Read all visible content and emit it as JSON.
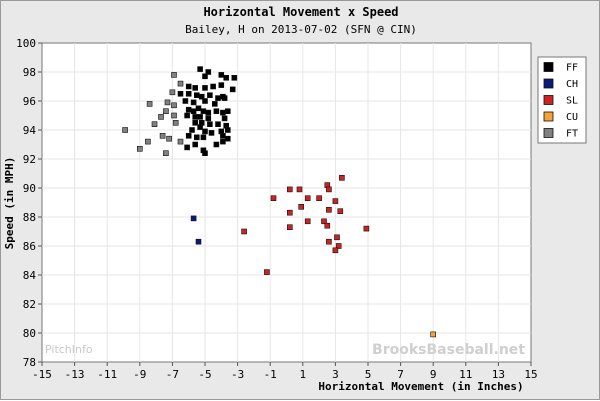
{
  "chart_data": {
    "type": "scatter",
    "title": "Horizontal Movement x Speed",
    "subtitle": "Bailey, H on 2013-07-02 (SFN @ CIN)",
    "xlabel": "Horizontal Movement (in Inches)",
    "ylabel": "Speed (in MPH)",
    "xlim": [
      -15,
      15
    ],
    "ylim": [
      78,
      100
    ],
    "xticks": [
      -15,
      -13,
      -11,
      -9,
      -7,
      -5,
      -3,
      -1,
      1,
      3,
      5,
      7,
      9,
      11,
      13,
      15
    ],
    "yticks": [
      78,
      80,
      82,
      84,
      86,
      88,
      90,
      92,
      94,
      96,
      98,
      100
    ],
    "grid": true,
    "legend": "top-right",
    "watermark": "BrooksBaseball.net",
    "logo_text": "PitchInfo",
    "series": [
      {
        "name": "FF",
        "color": "#000000",
        "points": [
          [
            -5.3,
            98.2
          ],
          [
            -4.8,
            98.0
          ],
          [
            -4.0,
            97.8
          ],
          [
            -3.7,
            97.6
          ],
          [
            -3.2,
            97.6
          ],
          [
            -5.0,
            97.7
          ],
          [
            -6.0,
            97.0
          ],
          [
            -5.6,
            96.9
          ],
          [
            -5.0,
            96.9
          ],
          [
            -4.5,
            97.0
          ],
          [
            -4.0,
            97.1
          ],
          [
            -3.3,
            96.8
          ],
          [
            -6.5,
            96.5
          ],
          [
            -6.0,
            96.5
          ],
          [
            -5.5,
            96.4
          ],
          [
            -5.2,
            96.3
          ],
          [
            -4.7,
            96.4
          ],
          [
            -4.2,
            96.2
          ],
          [
            -3.8,
            96.2
          ],
          [
            -6.2,
            96.0
          ],
          [
            -5.7,
            95.9
          ],
          [
            -5.0,
            96.0
          ],
          [
            -4.4,
            95.8
          ],
          [
            -3.9,
            96.3
          ],
          [
            -6.0,
            95.4
          ],
          [
            -5.7,
            95.3
          ],
          [
            -5.4,
            95.5
          ],
          [
            -5.1,
            95.3
          ],
          [
            -4.8,
            95.2
          ],
          [
            -4.3,
            95.3
          ],
          [
            -3.9,
            95.2
          ],
          [
            -3.6,
            95.3
          ],
          [
            -6.1,
            95.0
          ],
          [
            -5.6,
            94.9
          ],
          [
            -5.3,
            94.9
          ],
          [
            -4.8,
            94.8
          ],
          [
            -3.8,
            94.8
          ],
          [
            -5.6,
            94.5
          ],
          [
            -5.2,
            94.5
          ],
          [
            -4.7,
            94.4
          ],
          [
            -4.2,
            94.4
          ],
          [
            -3.7,
            94.3
          ],
          [
            -5.8,
            94.0
          ],
          [
            -5.3,
            94.2
          ],
          [
            -5.0,
            93.9
          ],
          [
            -4.6,
            93.8
          ],
          [
            -4.0,
            93.9
          ],
          [
            -3.6,
            94.0
          ],
          [
            -6.0,
            93.6
          ],
          [
            -5.5,
            93.5
          ],
          [
            -5.1,
            93.5
          ],
          [
            -3.9,
            93.6
          ],
          [
            -3.6,
            93.4
          ],
          [
            -5.6,
            93.0
          ],
          [
            -4.3,
            93.0
          ],
          [
            -3.9,
            93.2
          ],
          [
            -6.1,
            92.8
          ],
          [
            -5.1,
            92.6
          ],
          [
            -5.0,
            92.4
          ]
        ]
      },
      {
        "name": "CH",
        "color": "#0b1a7a",
        "points": [
          [
            -5.7,
            87.9
          ],
          [
            -5.4,
            86.3
          ]
        ]
      },
      {
        "name": "SL",
        "color": "#cc2222",
        "points": [
          [
            3.4,
            90.7
          ],
          [
            2.5,
            90.2
          ],
          [
            2.6,
            89.9
          ],
          [
            0.2,
            89.9
          ],
          [
            0.8,
            89.9
          ],
          [
            -0.8,
            89.3
          ],
          [
            1.3,
            89.3
          ],
          [
            2.0,
            89.3
          ],
          [
            3.0,
            89.1
          ],
          [
            0.9,
            88.7
          ],
          [
            2.6,
            88.5
          ],
          [
            0.2,
            88.3
          ],
          [
            3.3,
            88.4
          ],
          [
            1.3,
            87.7
          ],
          [
            2.3,
            87.7
          ],
          [
            2.5,
            87.4
          ],
          [
            0.2,
            87.3
          ],
          [
            4.9,
            87.2
          ],
          [
            -2.6,
            87.0
          ],
          [
            3.1,
            86.6
          ],
          [
            2.6,
            86.3
          ],
          [
            3.2,
            86.0
          ],
          [
            3.0,
            85.7
          ],
          [
            -1.2,
            84.2
          ]
        ]
      },
      {
        "name": "CU",
        "color": "#f5a236",
        "points": [
          [
            9.0,
            79.9
          ]
        ]
      },
      {
        "name": "FT",
        "color": "#808080",
        "points": [
          [
            -6.9,
            97.8
          ],
          [
            -6.5,
            97.2
          ],
          [
            -7.0,
            96.6
          ],
          [
            -8.4,
            95.8
          ],
          [
            -7.3,
            95.9
          ],
          [
            -6.9,
            95.7
          ],
          [
            -7.4,
            95.3
          ],
          [
            -6.9,
            95.0
          ],
          [
            -7.7,
            94.9
          ],
          [
            -6.8,
            94.5
          ],
          [
            -8.1,
            94.4
          ],
          [
            -9.9,
            94.0
          ],
          [
            -7.6,
            93.6
          ],
          [
            -7.2,
            93.4
          ],
          [
            -6.5,
            93.2
          ],
          [
            -8.5,
            93.2
          ],
          [
            -9.0,
            92.7
          ],
          [
            -7.4,
            92.4
          ]
        ]
      }
    ]
  }
}
